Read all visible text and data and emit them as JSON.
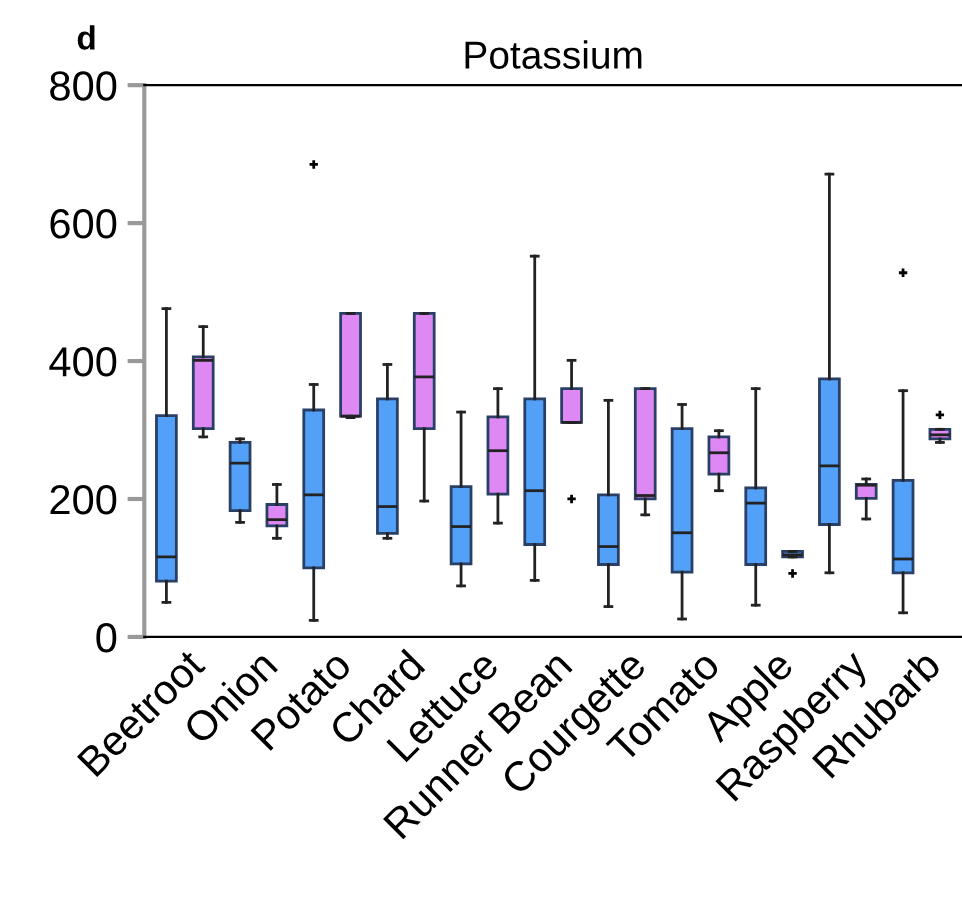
{
  "chart_data": {
    "type": "box",
    "title": "Potassium",
    "annotations": [
      "d"
    ],
    "categories": [
      "Beetroot",
      "Onion",
      "Potato",
      "Chard",
      "Lettuce",
      "Runner Bean",
      "Courgette",
      "Tomato",
      "Apple",
      "Raspberry",
      "Rhubarb"
    ],
    "ylim": [
      0,
      800
    ],
    "yticks": [
      0,
      200,
      400,
      600,
      800
    ],
    "grid": false,
    "legend": false,
    "series": [
      {
        "color": "#52a0f7",
        "boxes": [
          {
            "low": 50,
            "q1": 81,
            "median": 116,
            "q3": 321,
            "high": 476
          },
          {
            "low": 166,
            "q1": 183,
            "median": 252,
            "q3": 282,
            "high": 287
          },
          {
            "low": 24,
            "q1": 100,
            "median": 206,
            "q3": 329,
            "high": 366,
            "outliers": [
              685
            ]
          },
          {
            "low": 143,
            "q1": 150,
            "median": 189,
            "q3": 345,
            "high": 395
          },
          {
            "low": 74,
            "q1": 106,
            "median": 160,
            "q3": 218,
            "high": 326
          },
          {
            "low": 82,
            "q1": 134,
            "median": 212,
            "q3": 345,
            "high": 552
          },
          {
            "low": 44,
            "q1": 105,
            "median": 131,
            "q3": 206,
            "high": 343
          },
          {
            "low": 26,
            "q1": 94,
            "median": 151,
            "q3": 302,
            "high": 337
          },
          {
            "low": 46,
            "q1": 105,
            "median": 194,
            "q3": 216,
            "high": 360
          },
          {
            "low": 93,
            "q1": 163,
            "median": 248,
            "q3": 374,
            "high": 671
          },
          {
            "low": 35,
            "q1": 93,
            "median": 113,
            "q3": 227,
            "high": 357,
            "outliers": [
              528
            ]
          }
        ]
      },
      {
        "color": "#de88f3",
        "colors": [
          "#de88f3",
          "#de88f3",
          "#de88f3",
          "#de88f3",
          "#de88f3",
          "#de88f3",
          "#de88f3",
          "#de88f3",
          "#52a0f7",
          "#de88f3",
          "#de88f3"
        ],
        "boxes": [
          {
            "low": 290,
            "q1": 302,
            "median": 401,
            "q3": 406,
            "high": 450
          },
          {
            "low": 143,
            "q1": 161,
            "median": 170,
            "q3": 192,
            "high": 221
          },
          {
            "low": 318,
            "q1": 320,
            "median": 320,
            "q3": 469,
            "high": 469
          },
          {
            "low": 197,
            "q1": 302,
            "median": 377,
            "q3": 469,
            "high": 469
          },
          {
            "low": 165,
            "q1": 207,
            "median": 270,
            "q3": 319,
            "high": 360
          },
          {
            "low": 311,
            "q1": 311,
            "median": 311,
            "q3": 360,
            "high": 401,
            "outliers": [
              200
            ]
          },
          {
            "low": 177,
            "q1": 200,
            "median": 205,
            "q3": 360,
            "high": 360
          },
          {
            "low": 212,
            "q1": 236,
            "median": 267,
            "q3": 290,
            "high": 299
          },
          {
            "low": 116,
            "q1": 116,
            "median": 119,
            "q3": 124,
            "high": 124,
            "outliers": [
              92
            ]
          },
          {
            "low": 171,
            "q1": 201,
            "median": 220,
            "q3": 221,
            "high": 229
          },
          {
            "low": 282,
            "q1": 287,
            "median": 293,
            "q3": 301,
            "high": 301,
            "outliers": [
              322
            ]
          }
        ]
      }
    ]
  }
}
